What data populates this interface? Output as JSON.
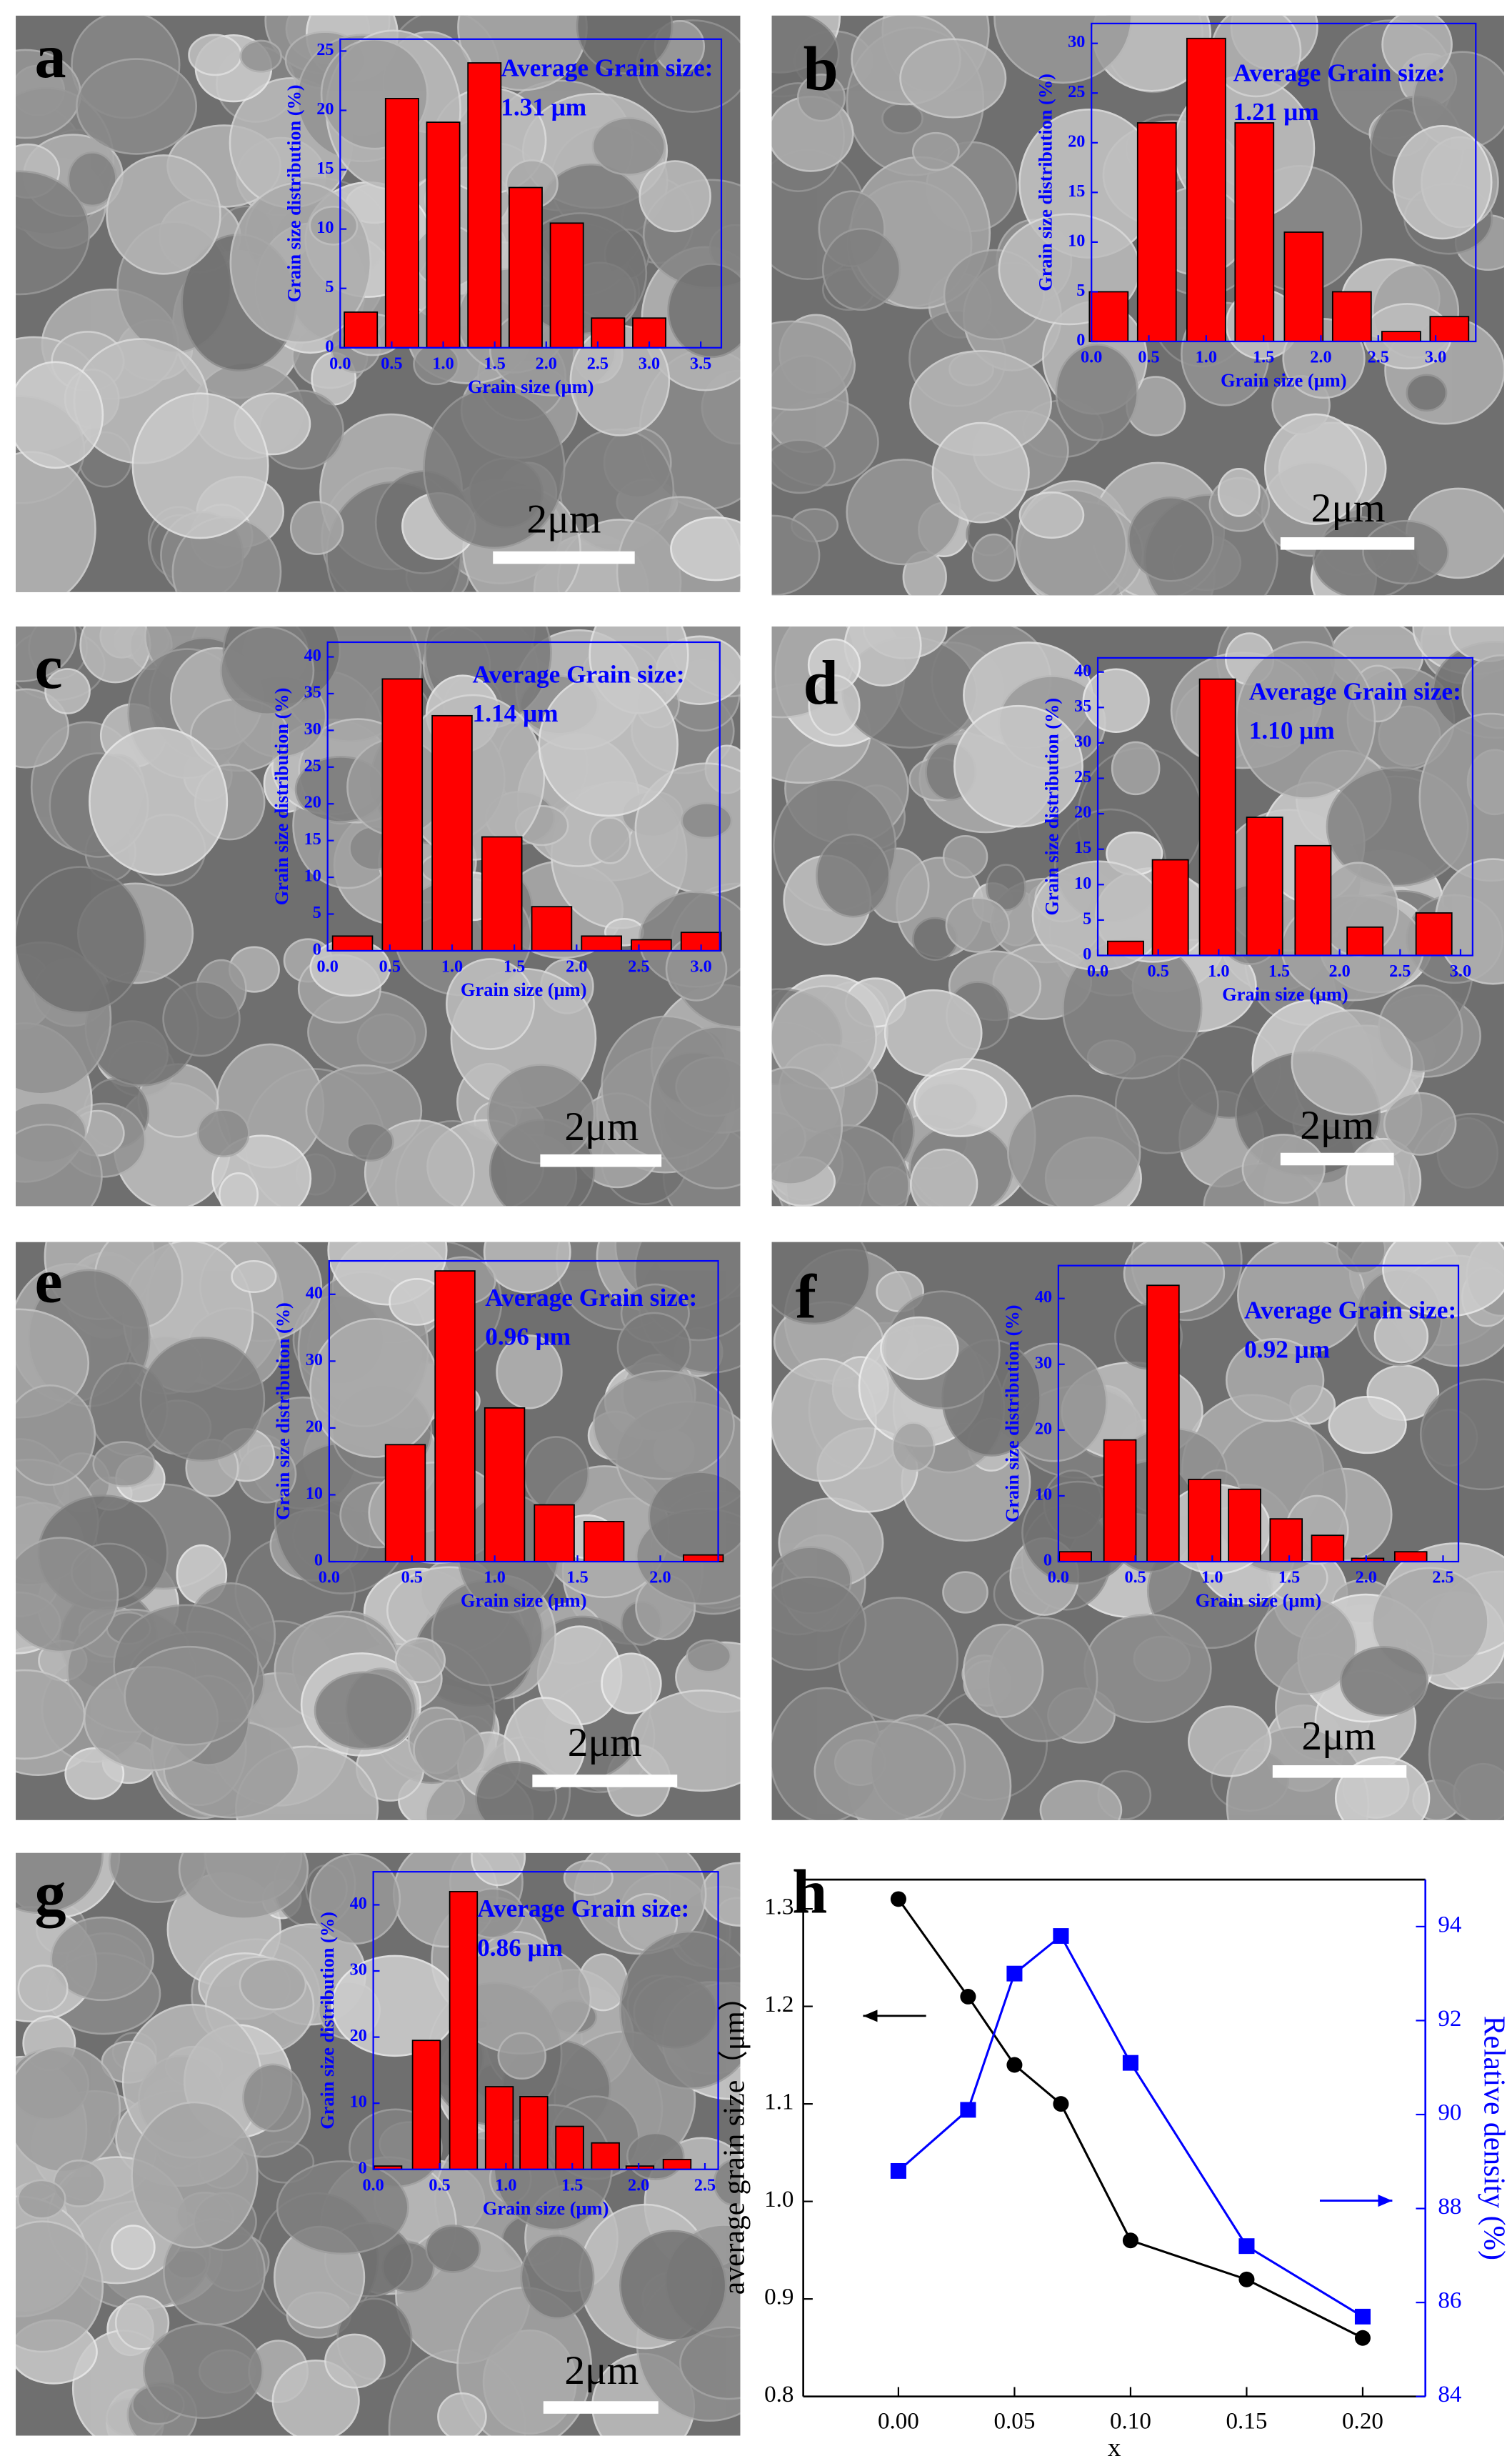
{
  "chart_data": [
    {
      "type": "bar",
      "panel_label": "a",
      "scale_bar": "2μm",
      "xlabel": "Grain size (μm)",
      "ylabel": "Grain size distribution (%)",
      "annotations": [
        "Average Grain size:",
        "1.31 μm"
      ],
      "color": "#ff0000",
      "x": [
        0.2,
        0.6,
        1.0,
        1.4,
        1.8,
        2.2,
        2.6,
        3.0
      ],
      "values": [
        3,
        21,
        19,
        24,
        13.5,
        10.5,
        2.5,
        2.5
      ],
      "xlim": [
        0,
        3.7
      ],
      "ylim": [
        0,
        26
      ],
      "xticks": [
        {
          "value": 0,
          "label": "0.0"
        },
        0.5,
        {
          "value": 1,
          "label": "1.0"
        },
        1.5,
        {
          "value": 2,
          "label": "2.0"
        },
        2.5,
        {
          "value": 3,
          "label": "3.0"
        },
        3.5
      ],
      "yticks": [
        0,
        5,
        10,
        15,
        20,
        25
      ]
    },
    {
      "type": "bar",
      "panel_label": "b",
      "scale_bar": "2μm",
      "xlabel": "Grain size (μm)",
      "ylabel": "Grain size distribution (%)",
      "annotations": [
        "Average Grain size:",
        "1.21 μm"
      ],
      "color": "#ff0000",
      "x": [
        0.15,
        0.57,
        1.0,
        1.42,
        1.85,
        2.27,
        2.7,
        3.12
      ],
      "values": [
        5,
        22,
        30.5,
        22,
        11,
        5,
        1,
        2.5
      ],
      "xlim": [
        0,
        3.35
      ],
      "ylim": [
        0,
        32
      ],
      "xticks": [
        {
          "value": 0,
          "label": "0.0"
        },
        0.5,
        {
          "value": 1,
          "label": "1.0"
        },
        1.5,
        {
          "value": 2,
          "label": "2.0"
        },
        2.5,
        {
          "value": 3,
          "label": "3.0"
        }
      ],
      "yticks": [
        0,
        5,
        10,
        15,
        20,
        25,
        30
      ]
    },
    {
      "type": "bar",
      "panel_label": "c",
      "scale_bar": "2μm",
      "xlabel": "Grain size (μm)",
      "ylabel": "Grain size distribution (%)",
      "annotations": [
        "Average Grain size:",
        "1.14 μm"
      ],
      "color": "#ff0000",
      "x": [
        0.2,
        0.6,
        1.0,
        1.4,
        1.8,
        2.2,
        2.6,
        3.0
      ],
      "values": [
        2,
        37,
        32,
        15.5,
        6,
        2,
        1.5,
        2.5
      ],
      "xlim": [
        0,
        3.15
      ],
      "ylim": [
        0,
        42
      ],
      "xticks": [
        {
          "value": 0,
          "label": "0.0"
        },
        0.5,
        {
          "value": 1,
          "label": "1.0"
        },
        1.5,
        {
          "value": 2,
          "label": "2.0"
        },
        2.5,
        {
          "value": 3,
          "label": "3.0"
        }
      ],
      "yticks": [
        0,
        5,
        10,
        15,
        20,
        25,
        30,
        35,
        40
      ]
    },
    {
      "type": "bar",
      "panel_label": "d",
      "scale_bar": "2μm",
      "xlabel": "Grain size (μm)",
      "ylabel": "Grain size distribution (%)",
      "annotations": [
        "Average Grain size:",
        "1.10 μm"
      ],
      "color": "#ff0000",
      "x": [
        0.23,
        0.6,
        0.99,
        1.38,
        1.78,
        2.21,
        2.78
      ],
      "values": [
        2,
        13.5,
        39,
        19.5,
        15.5,
        4,
        6
      ],
      "xlim": [
        0,
        3.1
      ],
      "ylim": [
        0,
        42
      ],
      "xticks": [
        {
          "value": 0,
          "label": "0.0"
        },
        0.5,
        {
          "value": 1,
          "label": "1.0"
        },
        1.5,
        {
          "value": 2,
          "label": "2.0"
        },
        2.5,
        {
          "value": 3,
          "label": "3.0"
        }
      ],
      "yticks": [
        0,
        5,
        10,
        15,
        20,
        25,
        30,
        35,
        40
      ]
    },
    {
      "type": "bar",
      "panel_label": "e",
      "scale_bar": "2μm",
      "xlabel": "Grain size (μm)",
      "ylabel": "Grain size distribution (%)",
      "annotations": [
        "Average Grain size:",
        "0.96 μm"
      ],
      "color": "#ff0000",
      "x": [
        0.46,
        0.76,
        1.06,
        1.36,
        1.66,
        2.26
      ],
      "values": [
        17.5,
        43.5,
        23,
        8.5,
        6,
        1
      ],
      "xlim": [
        0,
        2.35
      ],
      "ylim": [
        0,
        45
      ],
      "xticks": [
        {
          "value": 0,
          "label": "0.0"
        },
        0.5,
        {
          "value": 1,
          "label": "1.0"
        },
        1.5,
        {
          "value": 2,
          "label": "2.0"
        }
      ],
      "yticks": [
        0,
        10,
        20,
        30,
        40
      ]
    },
    {
      "type": "bar",
      "panel_label": "f",
      "scale_bar": "2μm",
      "xlabel": "Grain size (μm)",
      "ylabel": "Grain size distribution (%)",
      "annotations": [
        "Average Grain size:",
        "0.92 μm"
      ],
      "color": "#ff0000",
      "x": [
        0.11,
        0.4,
        0.68,
        0.95,
        1.21,
        1.48,
        1.75,
        2.01,
        2.29
      ],
      "values": [
        1.5,
        18.5,
        42,
        12.5,
        11,
        6.5,
        4,
        0.5,
        1.5
      ],
      "xlim": [
        0,
        2.6
      ],
      "ylim": [
        0,
        45
      ],
      "xticks": [
        {
          "value": 0,
          "label": "0.0"
        },
        0.5,
        {
          "value": 1,
          "label": "1.0"
        },
        1.5,
        {
          "value": 2,
          "label": "2.0"
        },
        2.5
      ],
      "yticks": [
        0,
        10,
        20,
        30,
        40
      ]
    },
    {
      "type": "bar",
      "panel_label": "g",
      "scale_bar": "2μm",
      "xlabel": "Grain size (μm)",
      "ylabel": "Grain size distribution (%)",
      "annotations": [
        "Average Grain size:",
        "0.86 μm"
      ],
      "color": "#ff0000",
      "x": [
        0.11,
        0.4,
        0.68,
        0.95,
        1.21,
        1.48,
        1.75,
        2.01,
        2.29
      ],
      "values": [
        0.5,
        19.5,
        42,
        12.5,
        11,
        6.5,
        4,
        0.5,
        1.5
      ],
      "xlim": [
        0,
        2.6
      ],
      "ylim": [
        0,
        45
      ],
      "xticks": [
        {
          "value": 0,
          "label": "0.0"
        },
        0.5,
        {
          "value": 1,
          "label": "1.0"
        },
        1.5,
        {
          "value": 2,
          "label": "2.0"
        },
        2.5
      ],
      "yticks": [
        0,
        10,
        20,
        30,
        40
      ]
    },
    {
      "type": "line",
      "panel_label": "h",
      "xlabel": "x",
      "ylabel": "average grain size（μm）",
      "y2label": "Relative density (%)",
      "x": [
        0,
        0.03,
        0.05,
        0.07,
        0.1,
        0.15,
        0.2
      ],
      "series": [
        {
          "color": "#000000",
          "marker": "circle",
          "values": [
            1.31,
            1.21,
            1.14,
            1.1,
            0.96,
            0.92,
            0.86
          ]
        },
        {
          "color": "#0000ff",
          "marker": "square",
          "axis": "y2",
          "values": [
            88.8,
            90.1,
            93.0,
            93.8,
            91.1,
            87.2,
            85.7
          ]
        }
      ],
      "xlim": [
        -0.041,
        0.227
      ],
      "ylim": [
        0.8,
        1.33
      ],
      "y2lim": [
        84,
        95
      ],
      "xticks": [
        {
          "value": 0,
          "label": "0.00"
        },
        0.05,
        {
          "value": 0.1,
          "label": "0.10"
        },
        0.15,
        {
          "value": 0.2,
          "label": "0.20"
        }
      ],
      "yticks": [
        0.8,
        0.9,
        {
          "value": 1,
          "label": "1.0"
        },
        1.1,
        1.2,
        1.3
      ],
      "y2ticks": [
        84,
        86,
        88,
        90,
        92,
        94
      ]
    }
  ]
}
